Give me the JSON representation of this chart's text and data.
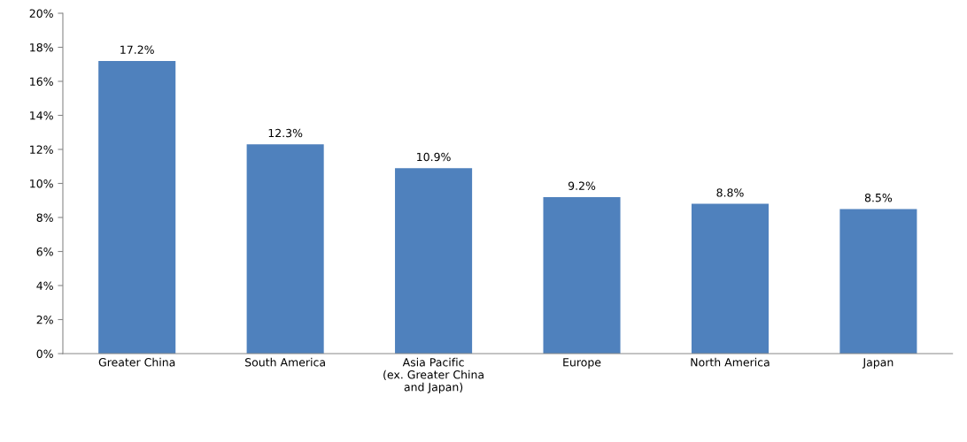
{
  "chart_data": {
    "type": "bar",
    "categories": [
      "Greater China",
      "South America",
      "Asia Pacific\n(ex. Greater China\nand Japan)",
      "Europe",
      "North America",
      "Japan"
    ],
    "values": [
      17.2,
      12.3,
      10.9,
      9.2,
      8.8,
      8.5
    ],
    "value_labels": [
      "17.2%",
      "12.3%",
      "10.9%",
      "9.2%",
      "8.8%",
      "8.5%"
    ],
    "color": "#4f81bd",
    "ylim": [
      0,
      20
    ],
    "yticks": [
      {
        "value": 0,
        "label": "0%"
      },
      {
        "value": 2,
        "label": "2%"
      },
      {
        "value": 4,
        "label": "4%"
      },
      {
        "value": 6,
        "label": "6%"
      },
      {
        "value": 8,
        "label": "8%"
      },
      {
        "value": 10,
        "label": "10%"
      },
      {
        "value": 12,
        "label": "12%"
      },
      {
        "value": 14,
        "label": "14%"
      },
      {
        "value": 16,
        "label": "16%"
      },
      {
        "value": 18,
        "label": "18%"
      },
      {
        "value": 20,
        "label": "20%"
      }
    ],
    "grid": false,
    "legend": false
  }
}
